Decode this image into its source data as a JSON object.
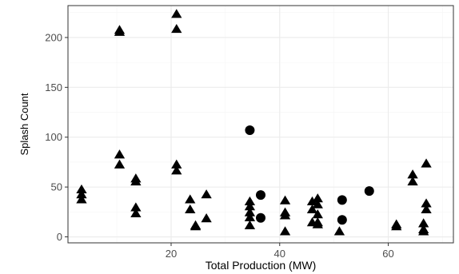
{
  "chart_data": {
    "type": "scatter",
    "title": "",
    "xlabel": "Total Production (MW)",
    "ylabel": "Splash Count",
    "xlim": [
      1,
      72
    ],
    "ylim": [
      -6,
      232
    ],
    "x_ticks": [
      20,
      40,
      60
    ],
    "y_ticks": [
      0,
      50,
      100,
      150,
      200
    ],
    "x_minor_ticks": [
      10,
      30,
      50,
      70
    ],
    "y_minor_ticks": [
      25,
      75,
      125,
      175,
      225
    ],
    "grid": true,
    "legend": "none",
    "colors": {
      "points": "#000000",
      "panel_border": "#333333",
      "grid_major": "#ebebeb",
      "grid_minor": "#f5f5f5"
    },
    "series": [
      {
        "marker": "triangle",
        "points": [
          [
            3.5,
            47
          ],
          [
            3.5,
            42
          ],
          [
            3.5,
            37
          ],
          [
            10.5,
            207
          ],
          [
            10.5,
            205
          ],
          [
            10.5,
            82
          ],
          [
            10.5,
            72
          ],
          [
            13.5,
            58
          ],
          [
            13.5,
            55
          ],
          [
            13.5,
            29
          ],
          [
            13.5,
            23
          ],
          [
            21,
            223
          ],
          [
            21,
            208
          ],
          [
            21,
            72
          ],
          [
            21,
            66
          ],
          [
            23.5,
            37
          ],
          [
            23.5,
            27
          ],
          [
            24.5,
            11
          ],
          [
            24.5,
            10
          ],
          [
            26.5,
            42
          ],
          [
            26.5,
            18
          ],
          [
            34.5,
            35
          ],
          [
            34.5,
            30
          ],
          [
            34.5,
            24
          ],
          [
            34.5,
            19
          ],
          [
            34.5,
            11
          ],
          [
            41,
            36
          ],
          [
            41,
            24
          ],
          [
            41,
            21
          ],
          [
            41,
            5
          ],
          [
            46,
            35
          ],
          [
            46,
            27
          ],
          [
            46,
            14
          ],
          [
            47,
            38
          ],
          [
            47,
            32
          ],
          [
            47,
            22
          ],
          [
            47,
            14
          ],
          [
            47,
            12
          ],
          [
            51,
            5
          ],
          [
            61.5,
            12
          ],
          [
            61.5,
            10
          ],
          [
            64.5,
            62
          ],
          [
            64.5,
            55
          ],
          [
            66.5,
            13
          ],
          [
            66.5,
            7
          ],
          [
            66.5,
            5
          ],
          [
            67,
            73
          ],
          [
            67,
            33
          ],
          [
            67,
            27
          ]
        ]
      },
      {
        "marker": "circle",
        "points": [
          [
            34.5,
            107
          ],
          [
            36.5,
            42
          ],
          [
            36.5,
            19
          ],
          [
            51.5,
            37
          ],
          [
            51.5,
            17
          ],
          [
            56.5,
            46
          ]
        ]
      }
    ]
  }
}
